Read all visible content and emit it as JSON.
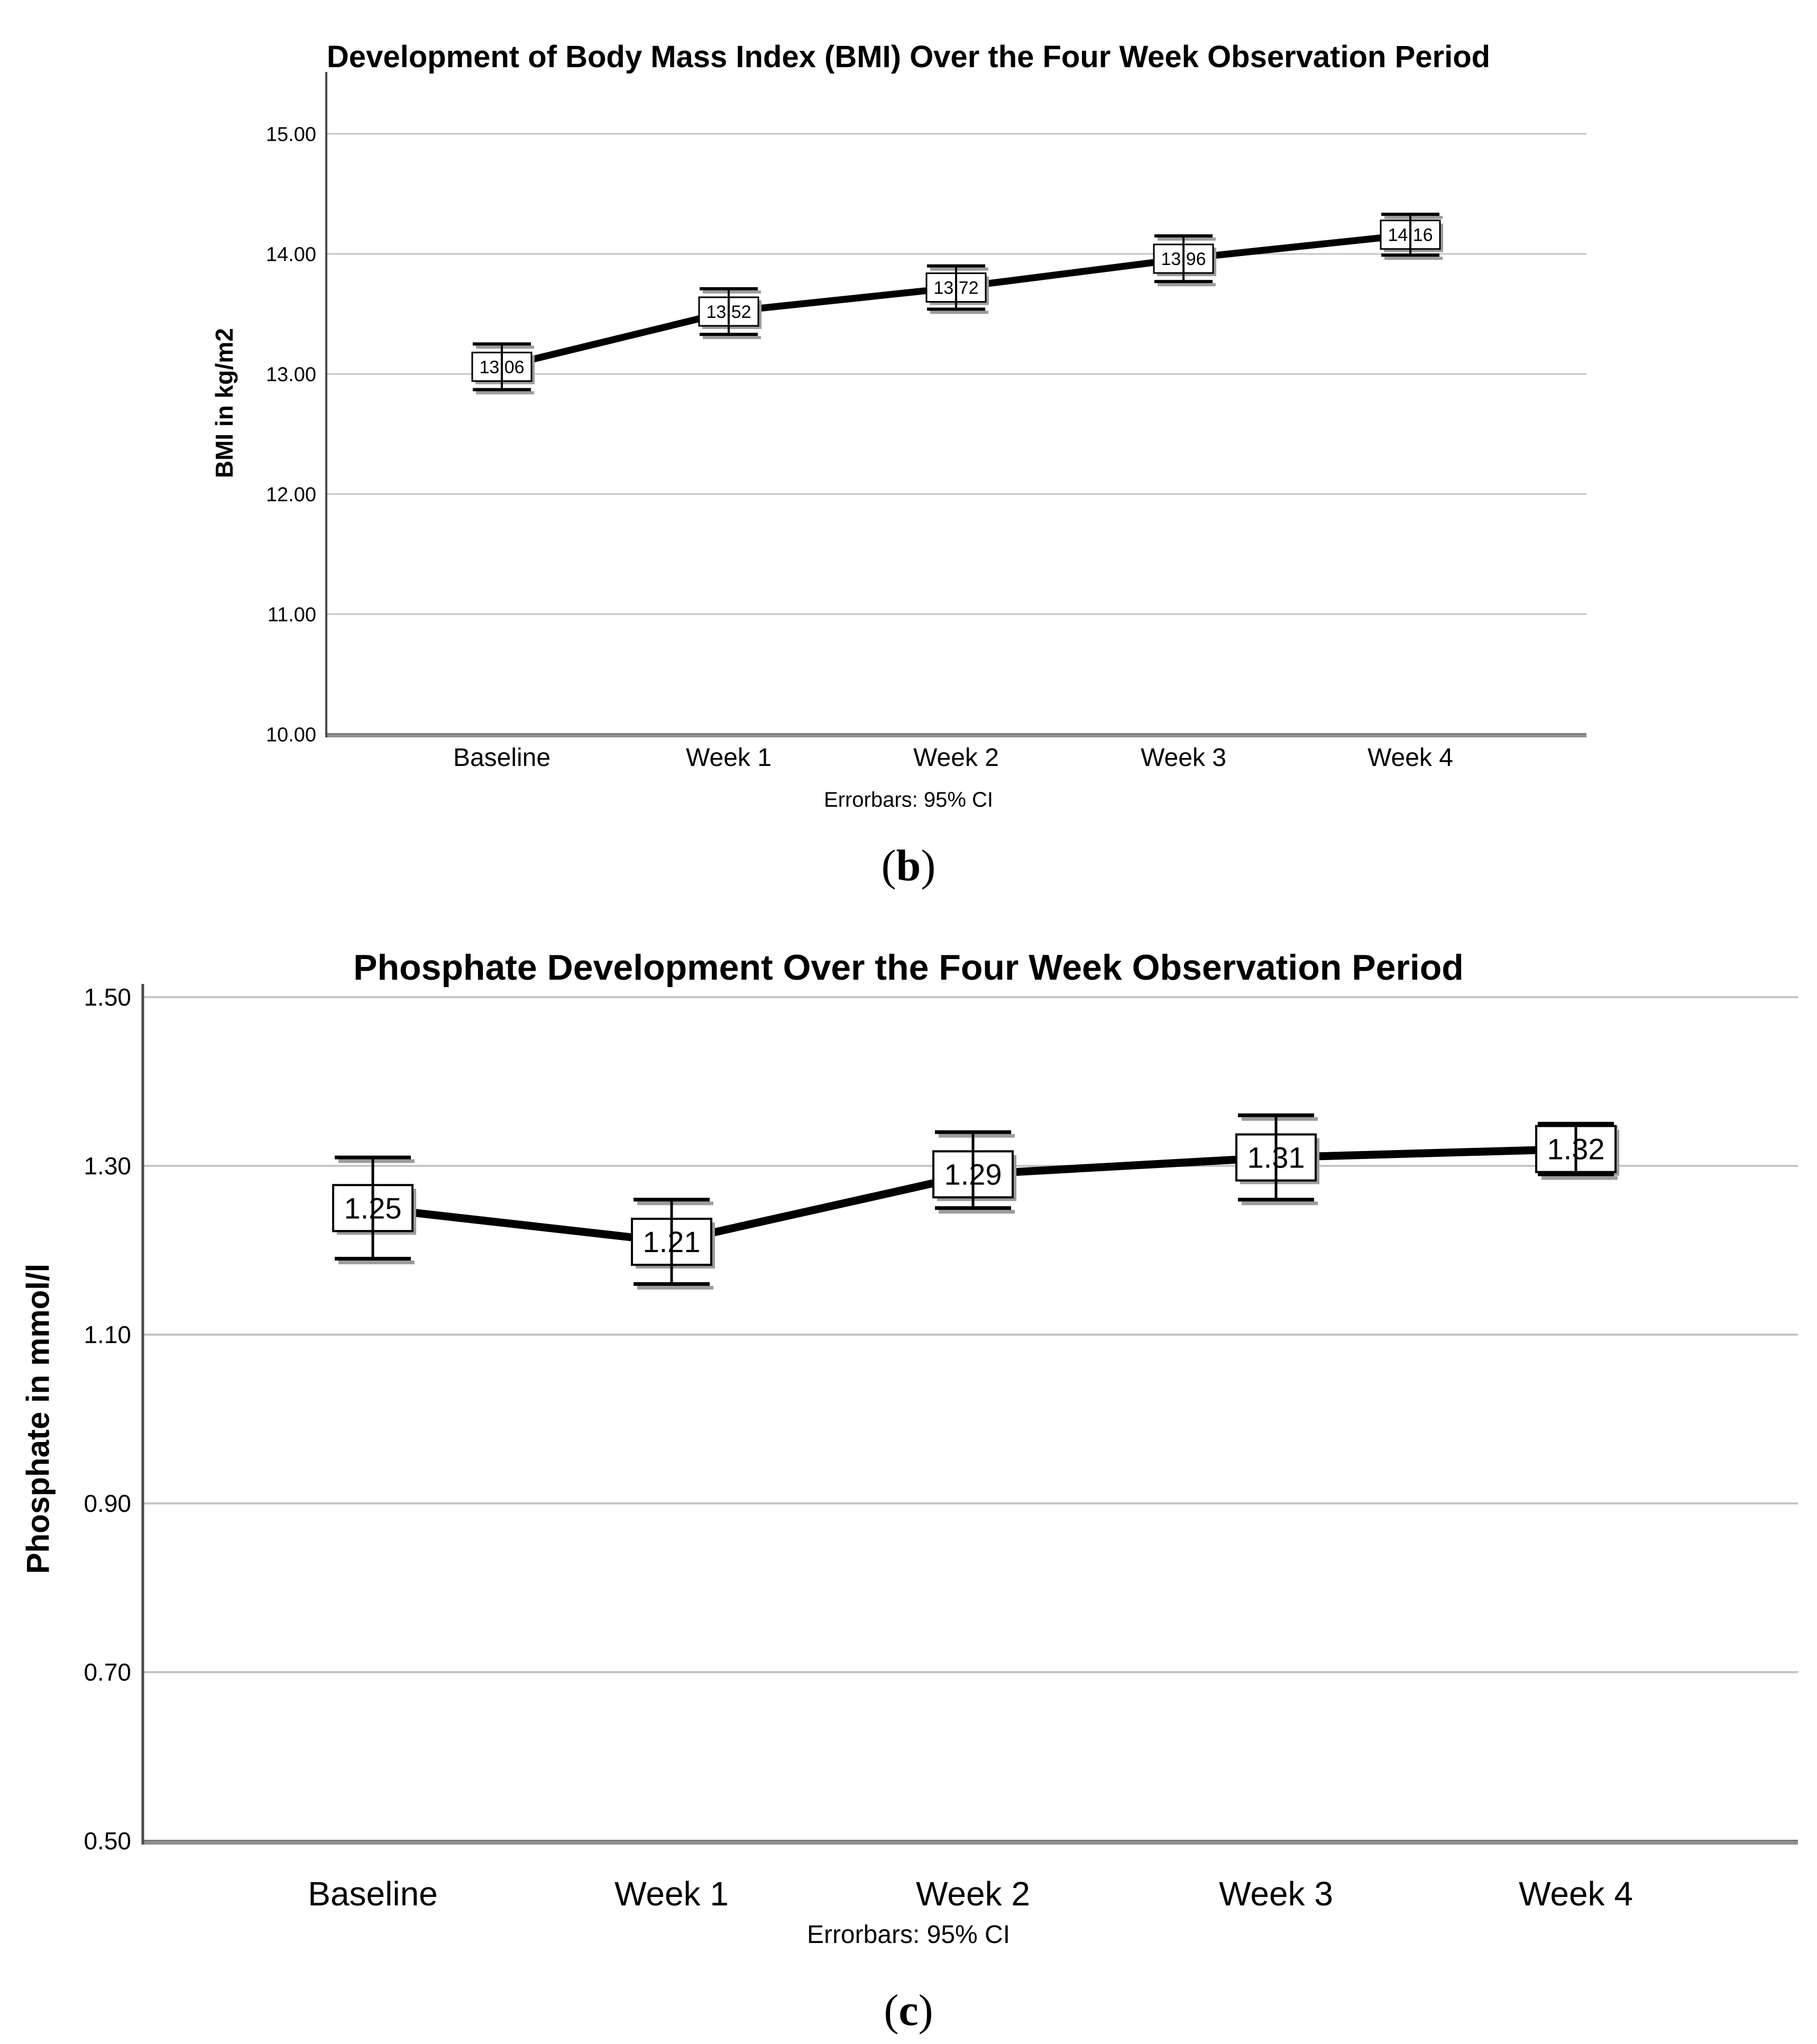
{
  "colors": {
    "background": "#ffffff",
    "grid": "#c5c5c5",
    "y_axis": "#4a4a4a",
    "x_axis": "#8f8f8f",
    "x_axis_edge": "#6e6e6e",
    "series_line": "#000000",
    "error_bar": "#000000",
    "label_box_fill": "#ffffff",
    "label_box_border": "#000000",
    "shadow": "#9c9c9c",
    "text": "#000000"
  },
  "chart_data": [
    {
      "type": "line",
      "panel": "b",
      "title": "Development of Body Mass Index (BMI) Over the Four Week Observation Period",
      "ylabel": "BMI in kg/m2",
      "xlabel": "",
      "footnote": "Errorbars: 95% CI",
      "errorbar_type": "95% CI",
      "caption_open": "(",
      "caption_letter": "b",
      "caption_close": ")",
      "categories": [
        "Baseline",
        "Week 1",
        "Week 2",
        "Week 3",
        "Week 4"
      ],
      "values": [
        13.06,
        13.52,
        13.72,
        13.96,
        14.16
      ],
      "value_labels": [
        "13.06",
        "13.52",
        "13.72",
        "13.96",
        "14.16"
      ],
      "ci_low": [
        12.87,
        13.33,
        13.54,
        13.77,
        13.99
      ],
      "ci_high": [
        13.25,
        13.71,
        13.9,
        14.15,
        14.33
      ],
      "y_ticks": [
        {
          "value": 10,
          "label": "10.00"
        },
        {
          "value": 11,
          "label": "11.00"
        },
        {
          "value": 12,
          "label": "12.00"
        },
        {
          "value": 13,
          "label": "13.00"
        },
        {
          "value": 14,
          "label": "14.00"
        },
        {
          "value": 15,
          "label": "15.00"
        }
      ],
      "ylim": [
        10,
        15.54
      ],
      "grid": "horizontal",
      "legend": "none"
    },
    {
      "type": "line",
      "panel": "c",
      "title": "Phosphate Development Over the Four Week Observation Period",
      "ylabel": "Phosphate in mmol/l",
      "xlabel": "",
      "footnote": "Errorbars: 95% CI",
      "errorbar_type": "95% CI",
      "caption_open": "(",
      "caption_letter": "c",
      "caption_close": ")",
      "categories": [
        "Baseline",
        "Week 1",
        "Week 2",
        "Week 3",
        "Week 4"
      ],
      "values": [
        1.25,
        1.21,
        1.29,
        1.31,
        1.32
      ],
      "value_labels": [
        "1.25",
        "1.21",
        "1.29",
        "1.31",
        "1.32"
      ],
      "ci_low": [
        1.19,
        1.16,
        1.25,
        1.26,
        1.29
      ],
      "ci_high": [
        1.31,
        1.26,
        1.34,
        1.36,
        1.35
      ],
      "y_ticks": [
        {
          "value": 0.5,
          "label": "0.50"
        },
        {
          "value": 0.7,
          "label": "0.70"
        },
        {
          "value": 0.9,
          "label": "0.90"
        },
        {
          "value": 1.1,
          "label": "1.10"
        },
        {
          "value": 1.3,
          "label": "1.30"
        },
        {
          "value": 1.5,
          "label": "1.50"
        }
      ],
      "ylim": [
        0.5,
        1.5
      ],
      "grid": "horizontal",
      "legend": "none"
    }
  ]
}
